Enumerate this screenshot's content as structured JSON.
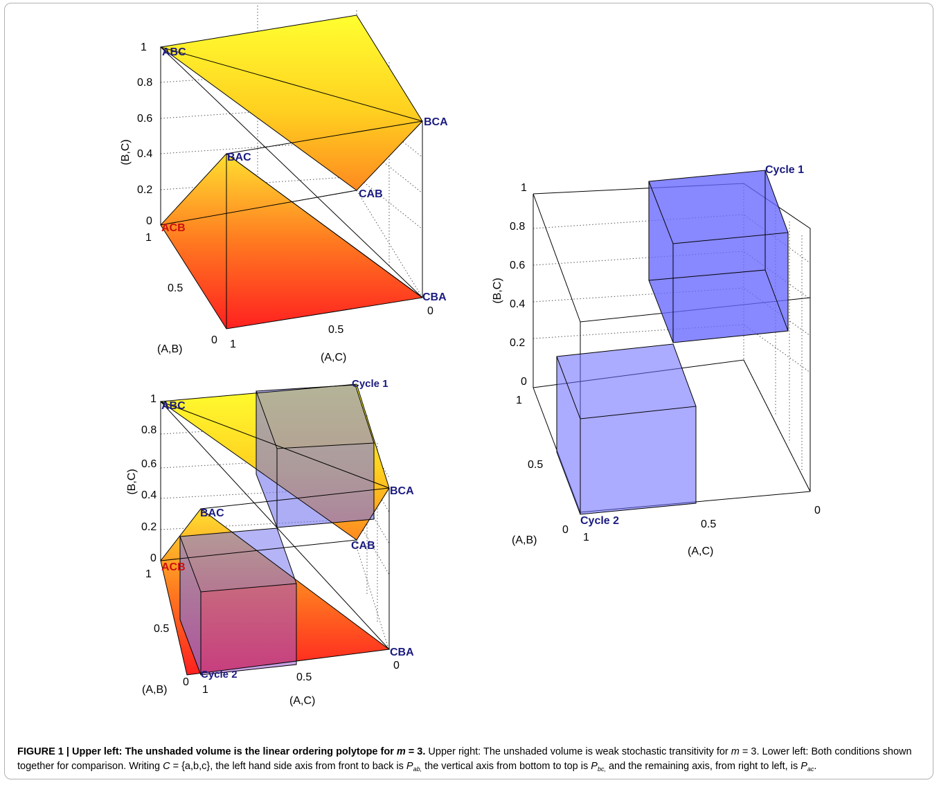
{
  "figure": {
    "panel_upper_left": {
      "vertices": {
        "abc": "ABC",
        "bca": "BCA",
        "bac": "BAC",
        "cab": "CAB",
        "acb": "ACB",
        "cba": "CBA"
      },
      "z_ticks": [
        "1",
        "0.8",
        "0.6",
        "0.4",
        "0.2",
        "0"
      ],
      "ab_ticks": [
        "1",
        "0.5",
        "0"
      ],
      "ac_ticks": [
        "1",
        "0.5",
        "0"
      ],
      "z_label": "(B,C)",
      "ab_label": "(A,B)",
      "ac_label": "(A,C)"
    },
    "panel_right": {
      "cycle1": "Cycle 1",
      "cycle2": "Cycle 2",
      "z_ticks": [
        "1",
        "0.8",
        "0.6",
        "0.4",
        "0.2",
        "0"
      ],
      "ab_ticks": [
        "1",
        "0.5",
        "0"
      ],
      "ac_ticks": [
        "1",
        "0.5",
        "0"
      ],
      "z_label": "(B,C)",
      "ab_label": "(A,B)",
      "ac_label": "(A,C)"
    },
    "panel_lower_left": {
      "vertices": {
        "abc": "ABC",
        "bca": "BCA",
        "bac": "BAC",
        "cab": "CAB",
        "acb": "ACB",
        "cba": "CBA"
      },
      "cycle1": "Cycle 1",
      "cycle2": "Cycle 2",
      "z_ticks": [
        "1",
        "0.8",
        "0.6",
        "0.4",
        "0.2",
        "0"
      ],
      "ab_ticks": [
        "1",
        "0.5",
        "0"
      ],
      "ac_ticks": [
        "1",
        "0.5",
        "0"
      ],
      "z_label": "(B,C)",
      "ab_label": "(A,B)",
      "ac_label": "(A,C)"
    },
    "colors": {
      "yellow": "#ffff33",
      "red": "#ff2020",
      "blue_fill": "#6666ff",
      "vertex_label": "#1a1a80"
    }
  },
  "caption": {
    "label": "FIGURE 1 | Upper left: The unshaded volume is the linear ordering polytope for ",
    "label_var": "m",
    "label_end": " = 3.",
    "s1": " Upper right: The unshaded volume is weak stochastic transitivity for ",
    "m_var": "m",
    "s2": " = 3. Lower left: Both conditions shown together for comparison. Writing ",
    "set_sym": "C",
    "set_def": " = {a,b,c}, the left hand side axis from front to back is ",
    "p": "P",
    "sub_ab": "ab,",
    "s3": " the vertical axis from bottom to top is ",
    "sub_bc": "bc,",
    "s4": " and the remaining axis, from right to left, is ",
    "sub_ac": "ac",
    "s5": "."
  }
}
